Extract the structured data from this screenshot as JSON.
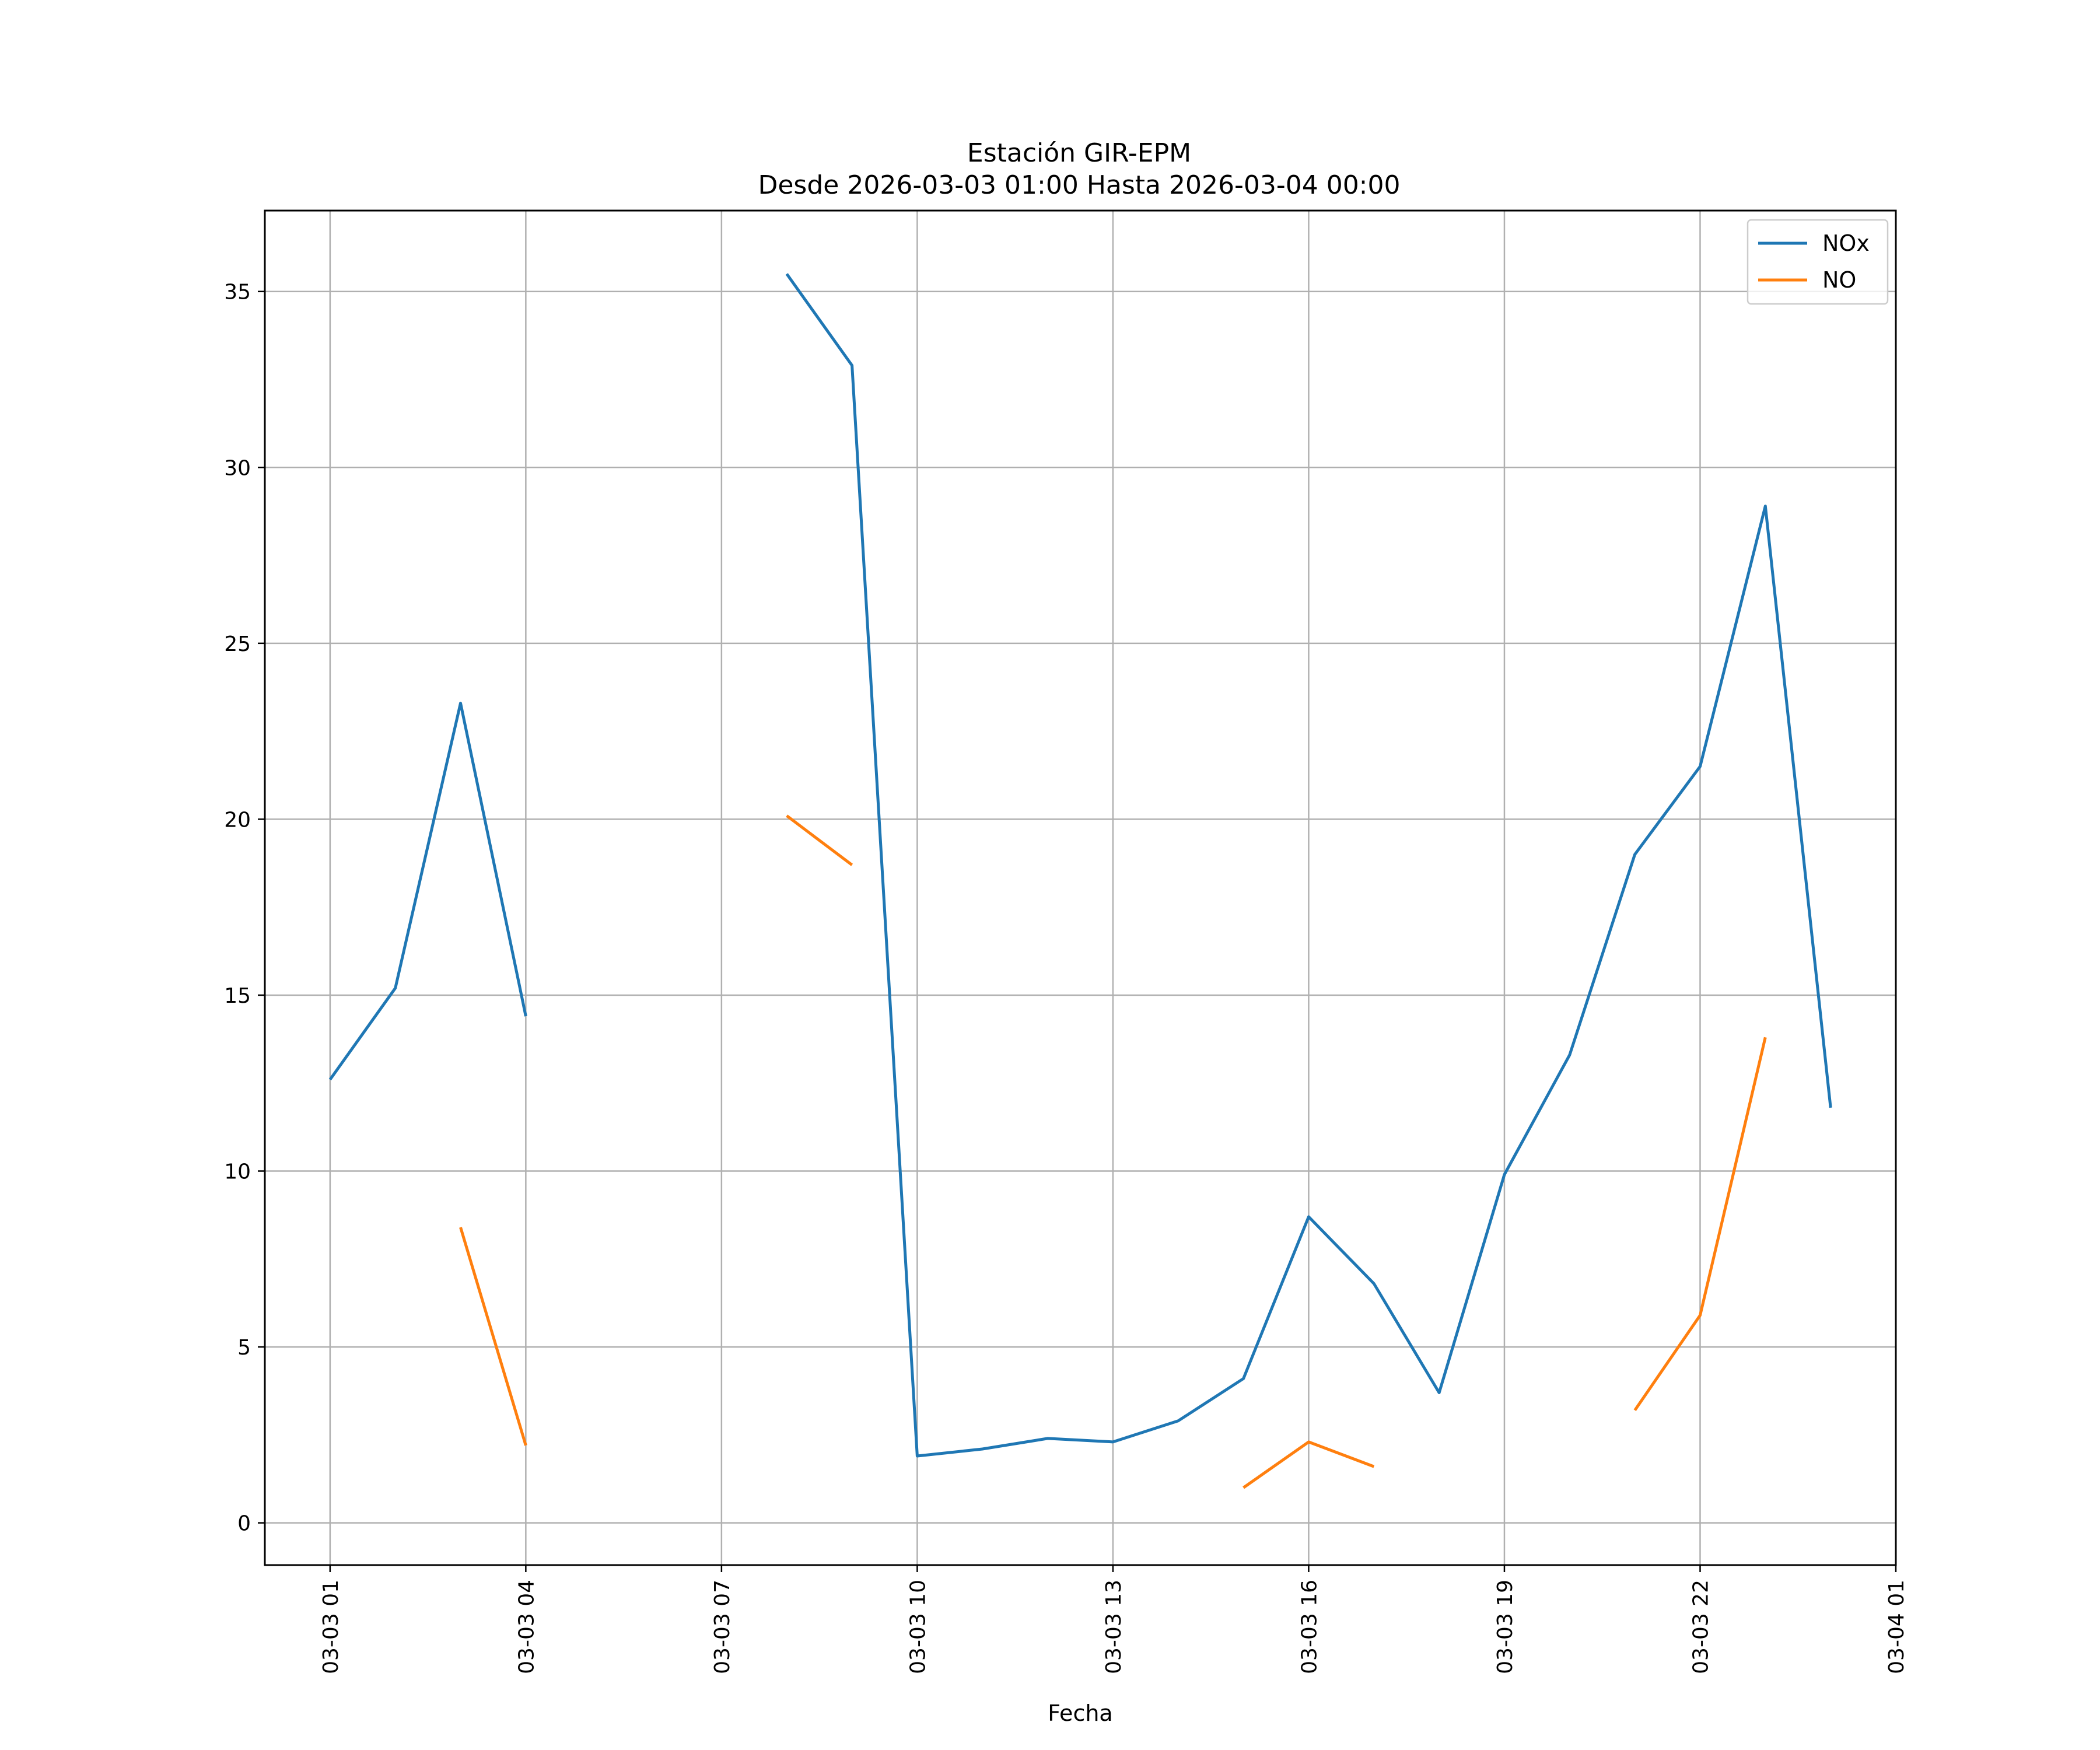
{
  "chart_data": {
    "type": "line",
    "title": "Estación GIR-EPM",
    "subtitle": "Desde 2026-03-03 01:00 Hasta 2026-03-04 00:00",
    "xlabel": "Fecha",
    "ylabel": "",
    "x_range": [
      "2026-03-03 00:00",
      "2026-03-04 01:00"
    ],
    "ylim": [
      -1.2,
      37.3
    ],
    "grid": true,
    "legend_position": "top-right",
    "x_ticks": [
      {
        "t": "2026-03-03 01:00",
        "label": "03-03 01"
      },
      {
        "t": "2026-03-03 04:00",
        "label": "03-03 04"
      },
      {
        "t": "2026-03-03 07:00",
        "label": "03-03 07"
      },
      {
        "t": "2026-03-03 10:00",
        "label": "03-03 10"
      },
      {
        "t": "2026-03-03 13:00",
        "label": "03-03 13"
      },
      {
        "t": "2026-03-03 16:00",
        "label": "03-03 16"
      },
      {
        "t": "2026-03-03 19:00",
        "label": "03-03 19"
      },
      {
        "t": "2026-03-03 22:00",
        "label": "03-03 22"
      },
      {
        "t": "2026-03-04 01:00",
        "label": "03-04 01"
      }
    ],
    "y_ticks": [
      0,
      5,
      10,
      15,
      20,
      25,
      30,
      35
    ],
    "x": [
      "2026-03-03 01:00",
      "2026-03-03 02:00",
      "2026-03-03 03:00",
      "2026-03-03 04:00",
      "2026-03-03 05:00",
      "2026-03-03 06:00",
      "2026-03-03 07:00",
      "2026-03-03 08:00",
      "2026-03-03 09:00",
      "2026-03-03 10:00",
      "2026-03-03 11:00",
      "2026-03-03 12:00",
      "2026-03-03 13:00",
      "2026-03-03 14:00",
      "2026-03-03 15:00",
      "2026-03-03 16:00",
      "2026-03-03 17:00",
      "2026-03-03 18:00",
      "2026-03-03 19:00",
      "2026-03-03 20:00",
      "2026-03-03 21:00",
      "2026-03-03 22:00",
      "2026-03-03 23:00",
      "2026-03-04 00:00"
    ],
    "series": [
      {
        "name": "NOx",
        "color": "#1f77b4",
        "values": [
          12.6,
          15.2,
          23.3,
          14.4,
          null,
          null,
          null,
          35.5,
          32.9,
          1.9,
          2.1,
          2.4,
          2.3,
          2.9,
          4.1,
          8.7,
          6.8,
          3.7,
          9.9,
          13.3,
          19.0,
          21.5,
          28.9,
          11.8
        ]
      },
      {
        "name": "NO",
        "color": "#ff7f0e",
        "values": [
          null,
          null,
          8.4,
          2.2,
          null,
          null,
          null,
          20.1,
          18.7,
          null,
          null,
          null,
          null,
          null,
          1.0,
          2.3,
          1.6,
          null,
          null,
          null,
          3.2,
          5.9,
          13.8,
          null
        ]
      }
    ]
  }
}
